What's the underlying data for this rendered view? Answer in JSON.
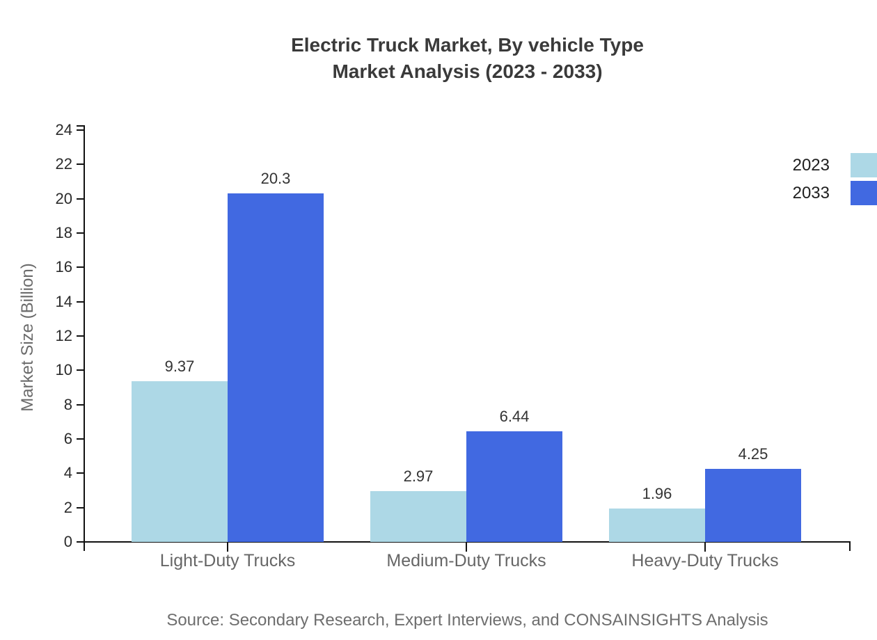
{
  "title": {
    "line1": "Electric Truck Market, By vehicle Type",
    "line2": "Market Analysis (2023 - 2033)"
  },
  "source": "Source: Secondary Research, Expert Interviews, and CONSAINSIGHTS Analysis",
  "colors": {
    "series_2023": "#ADD8E6",
    "series_2033": "#4169E1",
    "axis": "#111111",
    "title_text": "#3a3a3a",
    "tick_text": "#2b2b2b",
    "category_text": "#666666",
    "value_label_text": "#333333",
    "muted_text": "#6b6b6b"
  },
  "chart_data": {
    "type": "bar",
    "title": "Electric Truck Market, By vehicle Type — Market Analysis (2023 - 2033)",
    "categories": [
      "Light-Duty Trucks",
      "Medium-Duty Trucks",
      "Heavy-Duty Trucks"
    ],
    "series": [
      {
        "name": "2023",
        "color": "#ADD8E6",
        "values": [
          9.37,
          2.97,
          1.96
        ],
        "labels": [
          "9.37",
          "2.97",
          "1.96"
        ]
      },
      {
        "name": "2033",
        "color": "#4169E1",
        "values": [
          20.3,
          6.44,
          4.25
        ],
        "labels": [
          "20.3",
          "6.44",
          "4.25"
        ]
      }
    ],
    "xlabel": "",
    "ylabel": "Market Size (Billion)",
    "ylim": [
      0,
      24
    ],
    "yticks": [
      0,
      2,
      4,
      6,
      8,
      10,
      12,
      14,
      16,
      18,
      20,
      22,
      24
    ],
    "grid": false,
    "legend_position": "top-right",
    "value_labels_shown": true
  }
}
